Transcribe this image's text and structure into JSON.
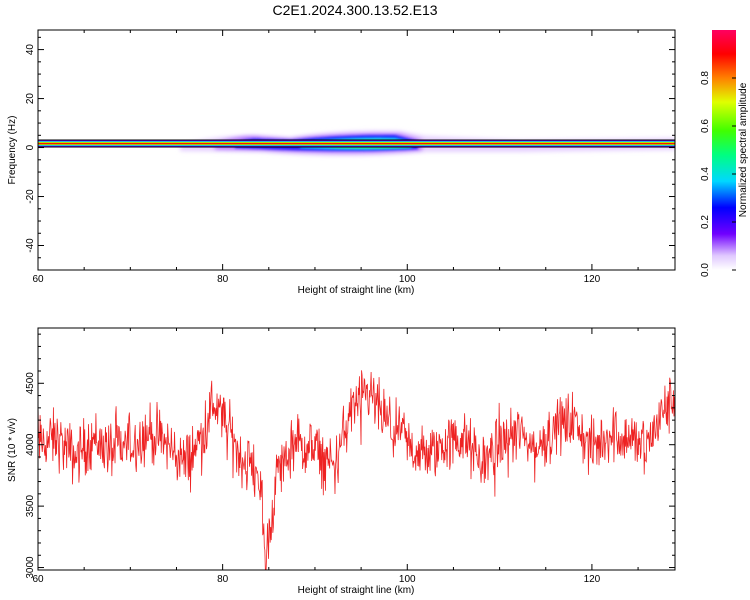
{
  "title": "C2E1.2024.300.13.52.E13",
  "colors": {
    "snr_line": "#ee2222",
    "axis": "#000000",
    "background": "#ffffff"
  },
  "chart_data": [
    {
      "type": "heatmap",
      "xlabel": "Height of straight line (km)",
      "ylabel": "Frequency (Hz)",
      "xlim": [
        60,
        129
      ],
      "ylim": [
        -50,
        48
      ],
      "x_ticks": [
        60,
        80,
        100,
        120
      ],
      "y_ticks": [
        -40,
        -20,
        0,
        20,
        40
      ],
      "grid": false,
      "colorbar": {
        "label": "Normalized spectral amplitude",
        "range": [
          0.0,
          1.0
        ],
        "ticks": [
          "0.0",
          "0.2",
          "0.4",
          "0.6",
          "0.8"
        ],
        "colormap": "rainbow"
      },
      "features": [
        {
          "description": "continuous band at ~1.5 Hz",
          "x_range": [
            60,
            129
          ],
          "freq_center": 1.5,
          "peak_amplitude": 1.0
        },
        {
          "description": "broadened spectrum",
          "x_range": [
            76,
            85
          ],
          "freq_range": [
            -1,
            5
          ]
        },
        {
          "description": "broadened spectrum",
          "x_range": [
            85,
            102
          ],
          "freq_range": [
            -2,
            6
          ]
        }
      ]
    },
    {
      "type": "line",
      "xlabel": "Height of straight line (km)",
      "ylabel": "SNR (10 * v/v)",
      "xlim": [
        60,
        129
      ],
      "ylim": [
        2980,
        4950
      ],
      "x_ticks": [
        60,
        80,
        100,
        120
      ],
      "y_ticks": [
        3000,
        3500,
        4000,
        4500
      ],
      "grid": false,
      "series": [
        {
          "x": [
            60,
            62,
            64,
            66,
            68,
            70,
            72,
            74,
            76,
            78,
            79,
            80,
            82,
            84,
            84.6,
            86,
            88,
            90,
            92,
            94,
            96,
            98,
            100,
            102,
            104,
            106,
            108,
            110,
            112,
            114,
            116,
            118,
            120,
            122,
            124,
            126,
            128,
            129
          ],
          "values": [
            4000,
            4050,
            3900,
            4050,
            3950,
            4000,
            4100,
            4000,
            3850,
            4100,
            4350,
            4200,
            3900,
            3750,
            3050,
            3800,
            4000,
            3950,
            3800,
            4300,
            4400,
            4150,
            4000,
            3900,
            4000,
            4050,
            3850,
            4000,
            4100,
            3950,
            4150,
            4200,
            3950,
            4100,
            4050,
            4000,
            4300,
            4350
          ]
        }
      ],
      "approx_sample_count": 1200,
      "noise_amplitude": 180
    }
  ]
}
